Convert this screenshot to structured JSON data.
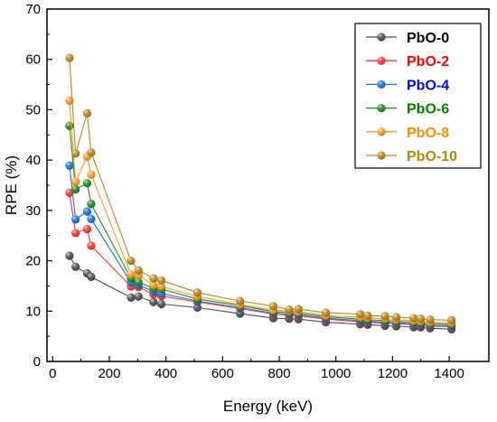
{
  "chart_data": {
    "type": "line",
    "xlabel": "Energy (keV)",
    "ylabel": "RPE (%)",
    "xlim": [
      -20,
      1540
    ],
    "ylim": [
      0,
      70
    ],
    "x_ticks": [
      "0",
      "200",
      "400",
      "600",
      "800",
      "1000",
      "1200",
      "1400"
    ],
    "y_ticks": [
      "0",
      "10",
      "20",
      "30",
      "40",
      "50",
      "60",
      "70"
    ],
    "legend_position": "top-right",
    "x": [
      59.5,
      80.9,
      121.8,
      136.0,
      276.4,
      302.9,
      356.0,
      383.8,
      511.0,
      661.7,
      778.9,
      834.8,
      867.4,
      964.1,
      1085.8,
      1112.1,
      1173.2,
      1212.9,
      1274.5,
      1299.1,
      1332.5,
      1408.0
    ],
    "series": [
      {
        "name": "PbO-0",
        "color": "#4d4d4d",
        "legend_color": "#000000",
        "values": [
          21.0,
          18.8,
          17.5,
          16.8,
          12.7,
          12.9,
          11.8,
          11.4,
          10.7,
          9.5,
          8.6,
          8.5,
          8.4,
          7.8,
          7.4,
          7.3,
          7.1,
          7.0,
          6.8,
          6.8,
          6.6,
          6.4
        ]
      },
      {
        "name": "PbO-2",
        "color": "#ff3333",
        "legend_color": "#ff0000",
        "values": [
          33.5,
          25.5,
          26.3,
          23.0,
          14.9,
          14.8,
          13.3,
          13.0,
          11.8,
          10.5,
          9.4,
          9.2,
          9.1,
          8.4,
          7.9,
          7.8,
          7.6,
          7.5,
          7.3,
          7.3,
          7.0,
          6.9
        ]
      },
      {
        "name": "PbO-4",
        "color": "#1f6fd6",
        "legend_color": "#0000ff",
        "values": [
          38.9,
          28.2,
          29.8,
          28.3,
          15.7,
          15.2,
          13.9,
          13.5,
          12.0,
          10.7,
          9.6,
          9.4,
          9.3,
          8.6,
          8.1,
          8.0,
          7.8,
          7.7,
          7.5,
          7.4,
          7.2,
          7.1
        ]
      },
      {
        "name": "PbO-6",
        "color": "#1e8b1e",
        "legend_color": "#008000",
        "values": [
          46.8,
          34.2,
          35.4,
          31.3,
          16.5,
          15.8,
          14.5,
          14.4,
          12.4,
          11.1,
          9.9,
          9.7,
          9.6,
          8.9,
          8.4,
          8.3,
          8.1,
          8.0,
          7.8,
          7.7,
          7.5,
          7.4
        ]
      },
      {
        "name": "PbO-8",
        "color": "#ff9a1f",
        "legend_color": "#ff8c00",
        "values": [
          51.8,
          35.7,
          40.7,
          37.1,
          17.3,
          17.1,
          15.2,
          14.9,
          12.9,
          11.3,
          10.2,
          10.0,
          9.9,
          9.1,
          8.8,
          8.7,
          8.5,
          8.3,
          8.1,
          8.0,
          7.8,
          7.7
        ]
      },
      {
        "name": "PbO-10",
        "color": "#b8861b",
        "legend_color": "#b8860b",
        "values": [
          60.3,
          41.3,
          49.3,
          41.5,
          20.0,
          18.1,
          16.5,
          16.1,
          13.7,
          12.0,
          11.0,
          10.3,
          10.4,
          9.7,
          9.4,
          9.1,
          9.0,
          8.8,
          8.6,
          8.5,
          8.3,
          8.2
        ]
      }
    ]
  }
}
